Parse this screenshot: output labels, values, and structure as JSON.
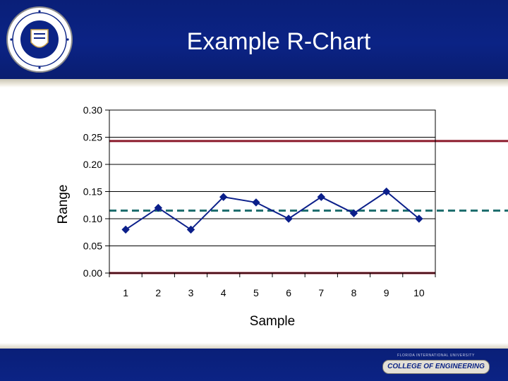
{
  "slide": {
    "title": "Example R-Chart",
    "footer_org": "FLORIDA INTERNATIONAL UNIVERSITY",
    "footer_college": "COLLEGE OF ENGINEERING"
  },
  "colors": {
    "header_blue": "#0b2385",
    "series": "#0b1f8a",
    "control_limit": "#8b1a2b",
    "center_line": "#1f6f6f"
  },
  "chart_data": {
    "type": "line",
    "title": "",
    "xlabel": "Sample",
    "ylabel": "Range",
    "categories": [
      "1",
      "2",
      "3",
      "4",
      "5",
      "6",
      "7",
      "8",
      "9",
      "10"
    ],
    "y_ticks": [
      "0.00",
      "0.05",
      "0.10",
      "0.15",
      "0.20",
      "0.25",
      "0.30"
    ],
    "ylim": [
      0,
      0.3
    ],
    "grid": true,
    "series": [
      {
        "values": [
          0.08,
          0.12,
          0.08,
          0.14,
          0.13,
          0.1,
          0.14,
          0.11,
          0.15,
          0.1
        ]
      }
    ],
    "reference_lines": [
      {
        "kind": "UCL",
        "value": 0.243,
        "style": "solid"
      },
      {
        "kind": "CL",
        "value": 0.115,
        "style": "dashed"
      },
      {
        "kind": "LCL",
        "value": 0.0,
        "style": "solid"
      }
    ]
  }
}
